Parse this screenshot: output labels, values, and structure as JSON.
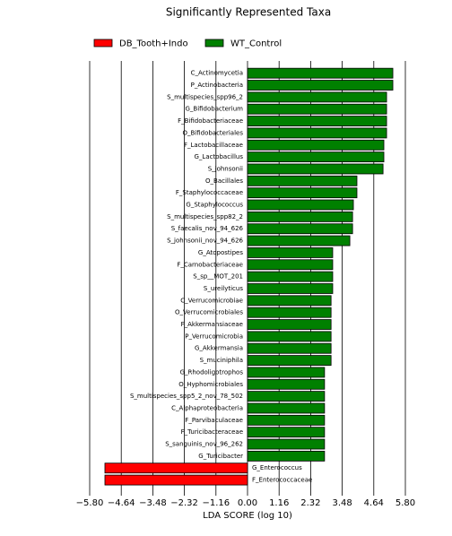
{
  "chart_data": {
    "type": "bar",
    "orientation": "horizontal",
    "title": "Significantly Represented Taxa",
    "xlabel": "LDA SCORE (log 10)",
    "categories": [
      "C_Actinomycetia",
      "P_Actinobacteria",
      "S_multispecies_spp96_2",
      "G_Bifidobacterium",
      "F_Bifidobacteriaceae",
      "O_Bifidobacteriales",
      "F_Lactobacillaceae",
      "G_Lactobacillus",
      "S_johnsonii",
      "O_Bacillales",
      "F_Staphylococcaceae",
      "G_Staphylococcus",
      "S_multispecies_spp82_2",
      "S_faecalis_nov_94_626",
      "S_johnsonii_nov_94_626",
      "G_Atopostipes",
      "F_Carnobacteriaceae",
      "S_sp__MOT_201",
      "S_ureilyticus",
      "C_Verrucomicrobiae",
      "O_Verrucomicrobiales",
      "F_Akkermansiaceae",
      "P_Verrucomicrobia",
      "G_Akkermansia",
      "S_muciniphila",
      "G_Rhodoligotrophos",
      "O_Hyphomicrobiales",
      "S_multispecies_spp5_2_nov_78_502",
      "C_Alphaproteobacteria",
      "F_Parvibaculaceae",
      "F_Turicibacteraceae",
      "S_sanguinis_nov_96_262",
      "G_Turicibacter",
      "G_Enterococcus",
      "F_Enterococcaceae"
    ],
    "series": [
      {
        "name": "DB_Tooth+Indo",
        "color": "#ff0000",
        "values": [
          null,
          null,
          null,
          null,
          null,
          null,
          null,
          null,
          null,
          null,
          null,
          null,
          null,
          null,
          null,
          null,
          null,
          null,
          null,
          null,
          null,
          null,
          null,
          null,
          null,
          null,
          null,
          null,
          null,
          null,
          null,
          null,
          null,
          -5.24,
          -5.24
        ]
      },
      {
        "name": "WT_Control",
        "color": "#008000",
        "values": [
          5.34,
          5.34,
          5.11,
          5.11,
          5.11,
          5.11,
          5.01,
          5.01,
          4.98,
          4.02,
          4.02,
          3.89,
          3.86,
          3.86,
          3.76,
          3.13,
          3.13,
          3.13,
          3.13,
          3.07,
          3.07,
          3.07,
          3.07,
          3.07,
          3.07,
          2.83,
          2.83,
          2.83,
          2.83,
          2.83,
          2.83,
          2.83,
          2.83,
          null,
          null
        ]
      }
    ],
    "xlim": [
      -5.8,
      5.8
    ],
    "xticks": [
      {
        "value": -5.8,
        "label": "−5.80"
      },
      {
        "value": -4.64,
        "label": "−4.64"
      },
      {
        "value": -3.48,
        "label": "−3.48"
      },
      {
        "value": -2.32,
        "label": "−2.32"
      },
      {
        "value": -1.16,
        "label": "−1.16"
      },
      {
        "value": 0,
        "label": "0.00"
      },
      1.16,
      2.32,
      3.48,
      4.64,
      {
        "value": 5.8,
        "label": "5.80"
      }
    ],
    "grid": true,
    "legend": "top"
  }
}
